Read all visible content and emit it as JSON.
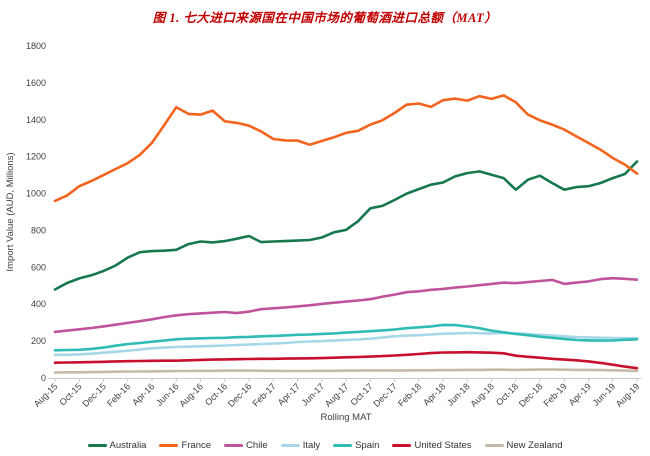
{
  "title": "图 1. 七大进口来源国在中国市场的葡萄酒进口总额（MAT）",
  "colors": {
    "title": "#C00000",
    "axis_line": "#C9C9C9",
    "tick_text": "#404040",
    "background": "#FFFFFF"
  },
  "chart_data": {
    "type": "line",
    "title": "图 1. 七大进口来源国在中国市场的葡萄酒进口总额（MAT）",
    "xlabel": "Rolling MAT",
    "ylabel": "Import Value (AUD, Millions)",
    "ylim": [
      0,
      1800
    ],
    "ytick_interval": 200,
    "grid": false,
    "legend_position": "bottom",
    "x": [
      "Aug-15",
      "Sep-15",
      "Oct-15",
      "Nov-15",
      "Dec-15",
      "Jan-16",
      "Feb-16",
      "Mar-16",
      "Apr-16",
      "May-16",
      "Jun-16",
      "Jul-16",
      "Aug-16",
      "Sep-16",
      "Oct-16",
      "Nov-16",
      "Dec-16",
      "Jan-17",
      "Feb-17",
      "Mar-17",
      "Apr-17",
      "May-17",
      "Jun-17",
      "Jul-17",
      "Aug-17",
      "Sep-17",
      "Oct-17",
      "Nov-17",
      "Dec-17",
      "Jan-18",
      "Feb-18",
      "Mar-18",
      "Apr-18",
      "May-18",
      "Jun-18",
      "Jul-18",
      "Aug-18",
      "Sep-18",
      "Oct-18",
      "Nov-18",
      "Dec-18",
      "Jan-19",
      "Feb-19",
      "Mar-19",
      "Apr-19",
      "May-19",
      "Jun-19",
      "Jul-19",
      "Aug-19"
    ],
    "xtick_step": 2,
    "xtick_labels": [
      "Aug-15",
      "Oct-15",
      "Dec-15",
      "Feb-16",
      "Apr-16",
      "Jun-16",
      "Aug-16",
      "Oct-16",
      "Dec-16",
      "Feb-17",
      "Apr-17",
      "Jun-17",
      "Aug-17",
      "Oct-17",
      "Dec-17",
      "Feb-18",
      "Apr-18",
      "Jun-18",
      "Aug-18",
      "Oct-18",
      "Dec-18",
      "Feb-19",
      "Apr-19",
      "Jun-19",
      "Aug-19"
    ],
    "series": [
      {
        "name": "Australia",
        "color": "#17784E",
        "values": [
          480,
          515,
          540,
          557,
          580,
          610,
          653,
          682,
          688,
          690,
          695,
          726,
          740,
          735,
          742,
          755,
          770,
          737,
          740,
          742,
          745,
          748,
          762,
          790,
          803,
          850,
          920,
          933,
          965,
          1000,
          1024,
          1048,
          1060,
          1093,
          1111,
          1120,
          1102,
          1084,
          1021,
          1075,
          1097,
          1057,
          1021,
          1035,
          1040,
          1057,
          1084,
          1106,
          1174
        ]
      },
      {
        "name": "France",
        "color": "#F4641E",
        "values": [
          960,
          990,
          1040,
          1068,
          1100,
          1133,
          1165,
          1210,
          1275,
          1370,
          1468,
          1432,
          1428,
          1450,
          1392,
          1383,
          1368,
          1337,
          1296,
          1288,
          1287,
          1265,
          1285,
          1305,
          1329,
          1340,
          1374,
          1397,
          1437,
          1482,
          1488,
          1470,
          1506,
          1515,
          1504,
          1528,
          1513,
          1532,
          1495,
          1428,
          1397,
          1374,
          1347,
          1310,
          1274,
          1238,
          1193,
          1157,
          1108
        ]
      },
      {
        "name": "Chile",
        "color": "#C0549C",
        "values": [
          250,
          257,
          264,
          271,
          280,
          289,
          299,
          308,
          318,
          330,
          340,
          346,
          350,
          354,
          358,
          352,
          360,
          373,
          378,
          383,
          388,
          394,
          402,
          408,
          414,
          420,
          427,
          441,
          452,
          465,
          470,
          478,
          483,
          490,
          496,
          503,
          510,
          517,
          514,
          520,
          526,
          532,
          510,
          517,
          524,
          536,
          541,
          538,
          533
        ]
      },
      {
        "name": "Italy",
        "color": "#A8D8E8",
        "values": [
          125,
          126,
          128,
          132,
          137,
          142,
          148,
          154,
          161,
          165,
          168,
          170,
          172,
          174,
          176,
          179,
          181,
          184,
          187,
          190,
          195,
          198,
          200,
          203,
          206,
          209,
          213,
          220,
          226,
          230,
          232,
          236,
          240,
          242,
          244,
          243,
          242,
          245,
          242,
          238,
          234,
          230,
          226,
          222,
          220,
          218,
          217,
          216,
          215
        ]
      },
      {
        "name": "Spain",
        "color": "#2FBCB4",
        "values": [
          150,
          152,
          153,
          158,
          165,
          175,
          184,
          190,
          197,
          203,
          210,
          213,
          215,
          217,
          218,
          221,
          223,
          226,
          228,
          231,
          234,
          236,
          239,
          242,
          246,
          250,
          254,
          258,
          263,
          270,
          275,
          280,
          288,
          287,
          280,
          270,
          257,
          248,
          239,
          232,
          224,
          218,
          212,
          206,
          204,
          203,
          204,
          207,
          210
        ]
      },
      {
        "name": "United States",
        "color": "#C8102E",
        "values": [
          83,
          84,
          85,
          86,
          88,
          90,
          91,
          92,
          93,
          94,
          94,
          96,
          98,
          100,
          101,
          102,
          103,
          104,
          104,
          105,
          106,
          107,
          108,
          110,
          112,
          114,
          116,
          119,
          122,
          126,
          130,
          135,
          138,
          139,
          140,
          139,
          137,
          134,
          121,
          115,
          110,
          104,
          100,
          96,
          90,
          82,
          72,
          62,
          53
        ]
      },
      {
        "name": "New Zealand",
        "color": "#C4BBA6",
        "values": [
          30,
          31,
          31,
          32,
          33,
          34,
          35,
          35,
          36,
          37,
          38,
          38,
          39,
          39,
          40,
          40,
          40,
          39,
          39,
          38,
          38,
          38,
          39,
          39,
          40,
          40,
          41,
          41,
          40,
          41,
          42,
          42,
          43,
          43,
          44,
          44,
          45,
          45,
          44,
          45,
          46,
          46,
          45,
          44,
          44,
          43,
          42,
          40,
          38
        ]
      }
    ]
  }
}
